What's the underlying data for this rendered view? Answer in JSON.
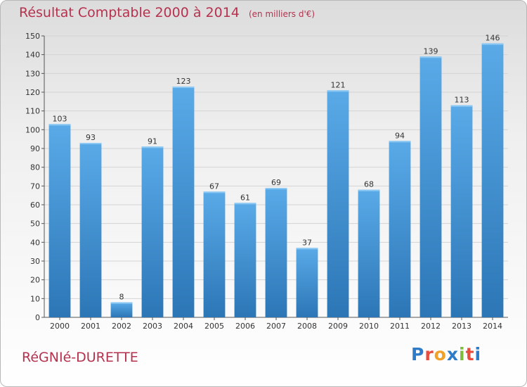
{
  "header": {
    "title": "Résultat Comptable 2000 à 2014",
    "unit": "(en milliers d'€)"
  },
  "footer": {
    "commune": "RéGNIé-DURETTE",
    "logo_text": "Proxiti",
    "logo_colors": [
      "#2e7bc8",
      "#e84c3d",
      "#f2a128",
      "#2e7bc8",
      "#7cbd3c",
      "#e84c3d",
      "#2e7bc8"
    ]
  },
  "colors": {
    "title": "#b5324e",
    "bar_light": "#5aaae8",
    "bar_dark": "#2c76b6",
    "grid": "#d4d4d4"
  },
  "chart_data": {
    "type": "bar",
    "title": "Résultat Comptable 2000 à 2014",
    "subtitle": "(en milliers d'€)",
    "categories": [
      "2000",
      "2001",
      "2002",
      "2003",
      "2004",
      "2005",
      "2006",
      "2007",
      "2008",
      "2009",
      "2010",
      "2011",
      "2012",
      "2013",
      "2014"
    ],
    "values": [
      103,
      93,
      8,
      91,
      123,
      67,
      61,
      69,
      37,
      121,
      68,
      94,
      139,
      113,
      146
    ],
    "xlabel": "",
    "ylabel": "",
    "ylim": [
      0,
      150
    ],
    "yticks": [
      0,
      10,
      20,
      30,
      40,
      50,
      60,
      70,
      80,
      90,
      100,
      110,
      120,
      130,
      140,
      150
    ],
    "grid": true,
    "data_labels": true,
    "legend": "none"
  }
}
